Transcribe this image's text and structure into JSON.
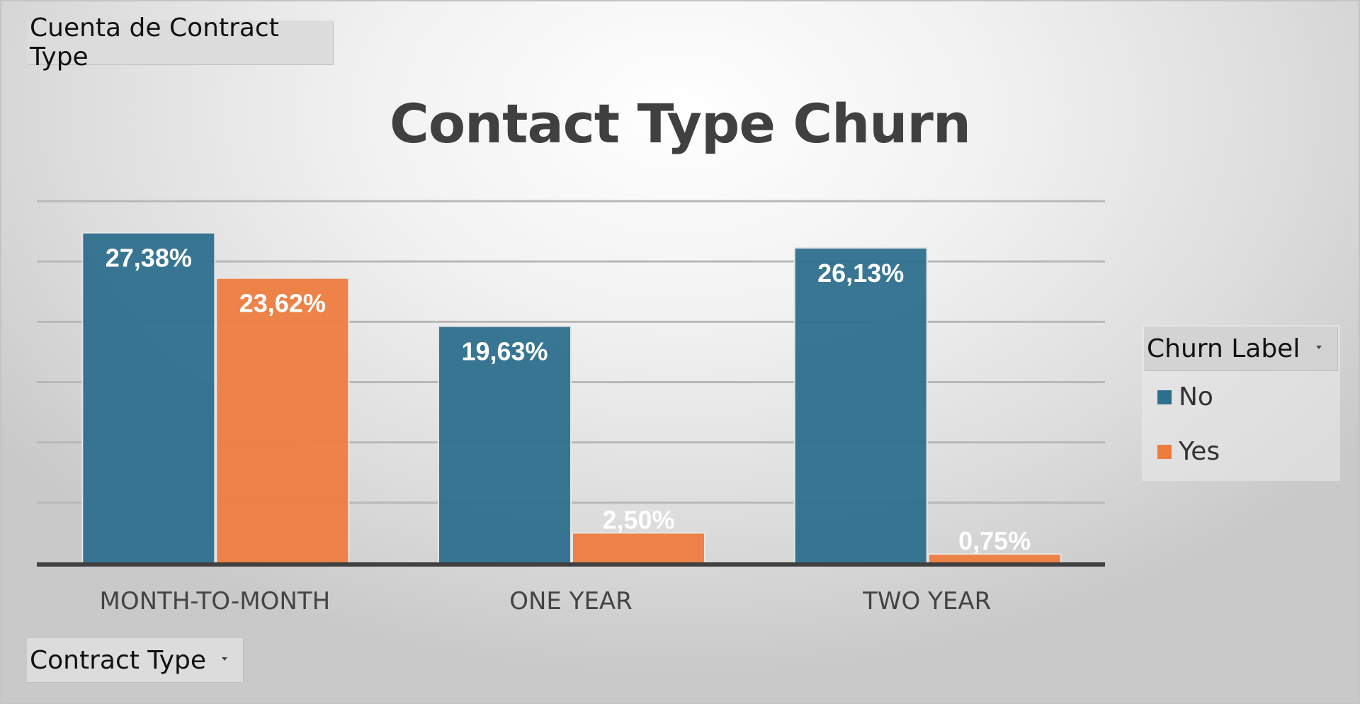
{
  "values_field": {
    "label": "Cuenta de Contract Type"
  },
  "axis_field": {
    "label": "Contract Type"
  },
  "legend_field": {
    "label": "Churn Label"
  },
  "colors": {
    "No": "#2e6f8e",
    "Yes": "#ed7d3f"
  },
  "chart_data": {
    "type": "bar",
    "title": "Contact Type Churn",
    "categories": [
      "MONTH-TO-MONTH",
      "ONE YEAR",
      "TWO YEAR"
    ],
    "series": [
      {
        "name": "No",
        "values": [
          27.38,
          19.63,
          26.13
        ],
        "labels": [
          "27,38%",
          "19,63%",
          "26,13%"
        ]
      },
      {
        "name": "Yes",
        "values": [
          23.62,
          2.5,
          0.75
        ],
        "labels": [
          "23,62%",
          "2,50%",
          "0,75%"
        ]
      }
    ],
    "ylim": [
      0,
      30
    ],
    "grid": true,
    "legend": "right"
  }
}
